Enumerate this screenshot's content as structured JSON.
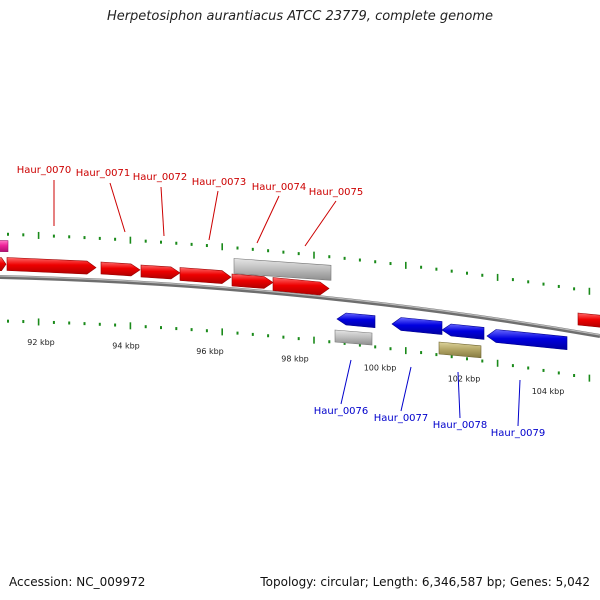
{
  "title": "Herpetosiphon aurantiacus ATCC 23779, complete genome",
  "footer": {
    "accession": "Accession: NC_009972",
    "summary": "Topology: circular; Length: 6,346,587 bp; Genes: 5,042"
  },
  "colors": {
    "forward_gene": "#ee0000",
    "reverse_gene": "#0000e0",
    "gray_gene": "#b8b8b8",
    "olive_gene": "#b5a868",
    "magenta_gene": "#ee2299",
    "tick": "#1a8a1a",
    "backbone": "#888888",
    "forward_label": "#cc0000",
    "reverse_label": "#0000cc"
  },
  "scale_labels": [
    "92 kbp",
    "94 kbp",
    "96 kbp",
    "98 kbp",
    "100 kbp",
    "102 kbp",
    "104 kbp"
  ],
  "forward_gene_labels": [
    "Haur_0070",
    "Haur_0071",
    "Haur_0072",
    "Haur_0073",
    "Haur_0074",
    "Haur_0075"
  ],
  "reverse_gene_labels": [
    "Haur_0076",
    "Haur_0077",
    "Haur_0078",
    "Haur_0079"
  ]
}
